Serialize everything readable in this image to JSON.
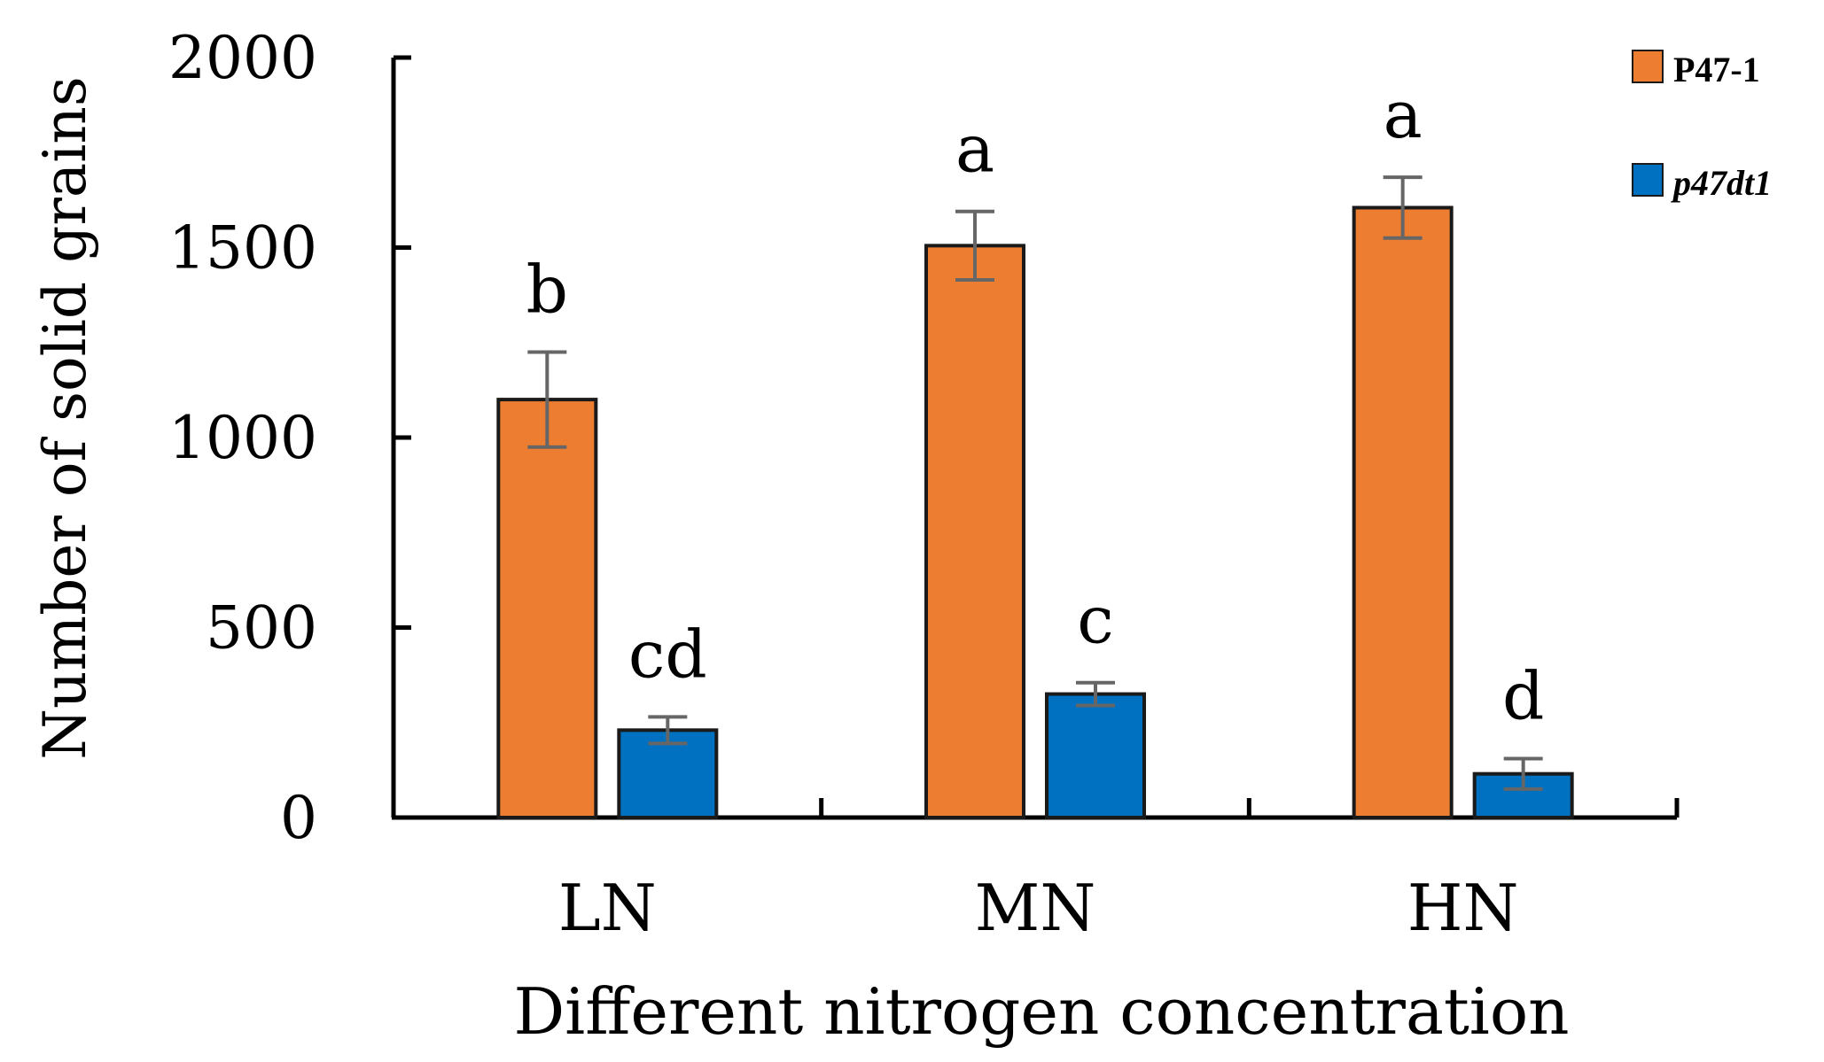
{
  "chart_data": {
    "type": "bar",
    "title": "",
    "xlabel": "Different nitrogen concentration",
    "ylabel": "Number of solid grains",
    "ylim": [
      0,
      2000
    ],
    "yticks": [
      0,
      500,
      1000,
      1500,
      2000
    ],
    "categories": [
      "LN",
      "MN",
      "HN"
    ],
    "series": [
      {
        "name": "P47-1",
        "color": "#ED7D31",
        "values": [
          1100,
          1505,
          1605
        ],
        "errors": [
          125,
          90,
          80
        ],
        "labels": [
          "b",
          "a",
          "a"
        ]
      },
      {
        "name": "p47dt1",
        "color": "#0070C0",
        "values": [
          230,
          325,
          115
        ],
        "errors": [
          35,
          30,
          40
        ],
        "labels": [
          "cd",
          "c",
          "d"
        ]
      }
    ],
    "legend": {
      "position": "top-right"
    },
    "grid": false
  }
}
